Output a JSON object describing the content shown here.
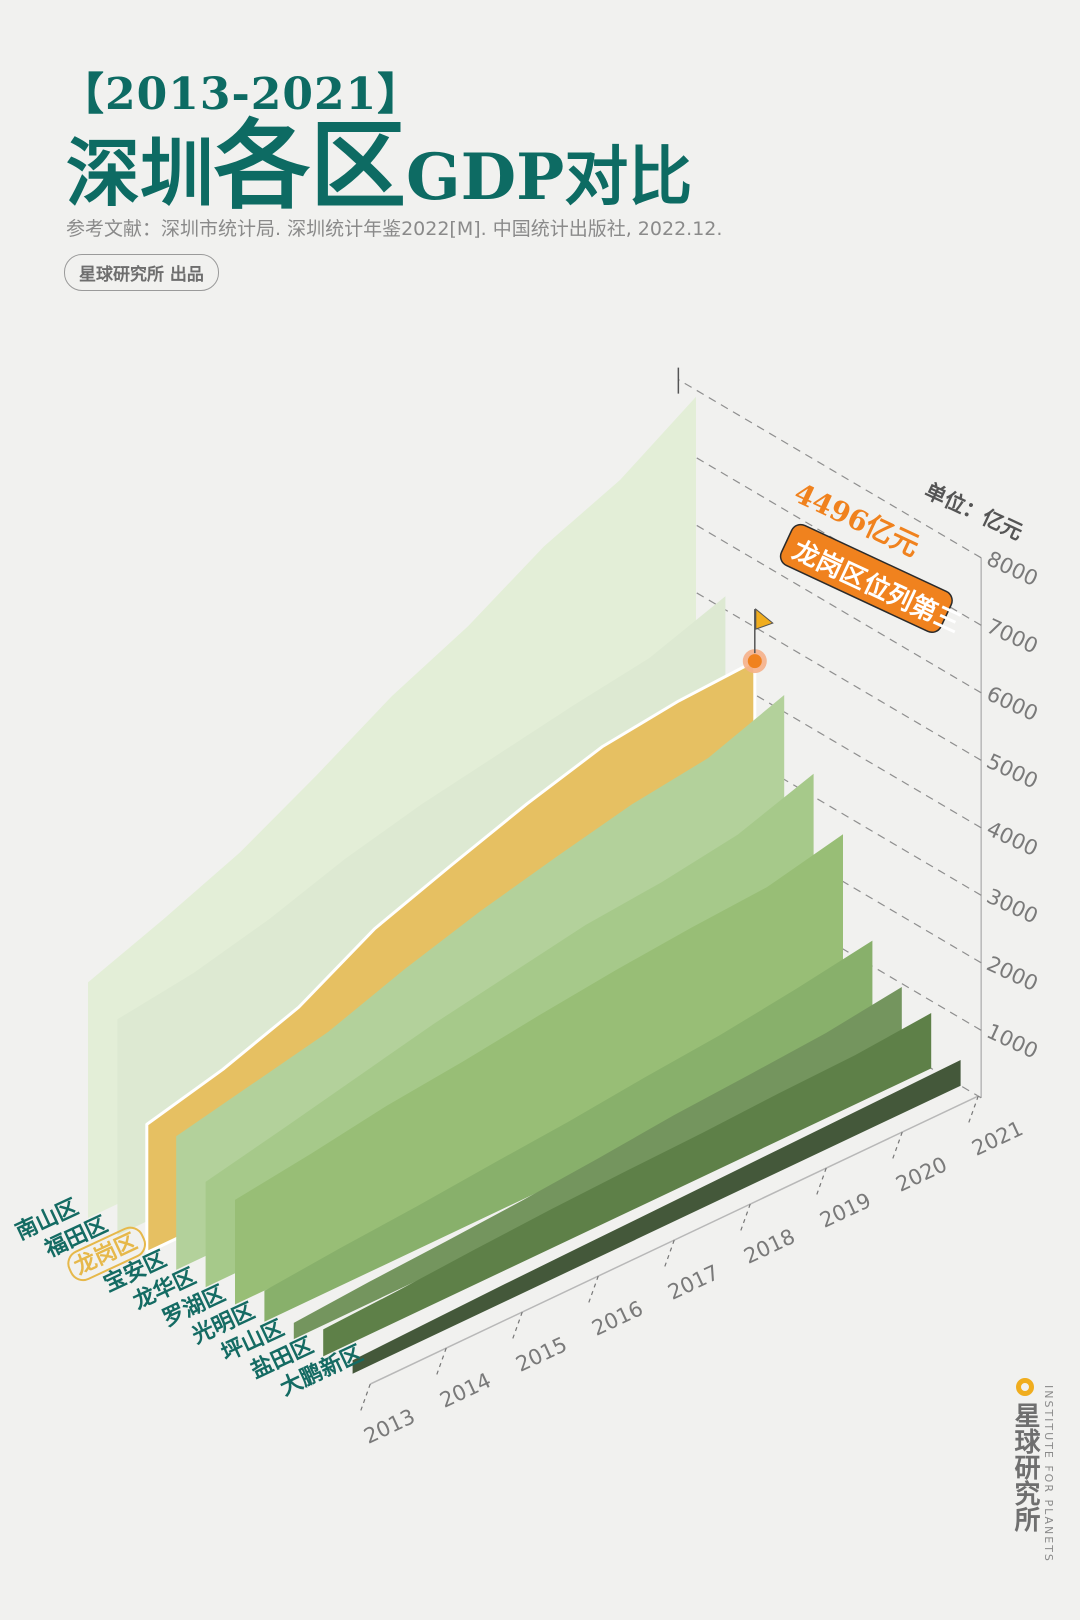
{
  "header": {
    "years": "【2013-2021】",
    "title_part1": "深圳",
    "title_part2": "各区",
    "title_part3": "GDP对比",
    "source": "参考文献：深圳市统计局. 深圳统计年鉴2022[M]. 中国统计出版社, 2022.12.",
    "publisher": "星球研究所 出品"
  },
  "brand": {
    "name_cn": "星球研究所",
    "name_en": "INSTITUTE FOR PLANETS"
  },
  "colors": {
    "title": "#0d6b63",
    "highlight": "#e6c062",
    "annotation": "#f0821e",
    "district_label": "#146b63"
  },
  "chart_data": {
    "type": "area",
    "style": "3d-stacked-ridge",
    "unit_label": "单位：亿元",
    "x": [
      "2013",
      "2014",
      "2015",
      "2016",
      "2017",
      "2018",
      "2019",
      "2020",
      "2021"
    ],
    "ylim": [
      0,
      8000
    ],
    "yticks": [
      "1000",
      "2000",
      "3000",
      "4000",
      "5000",
      "6000",
      "7000",
      "8000"
    ],
    "grid": true,
    "highlight_series": "龙岗区",
    "annotation": {
      "series": "龙岗区",
      "x": "2021",
      "value_text": "4496亿元",
      "note_text": "龙岗区位列第三"
    },
    "series": [
      {
        "name": "南山区",
        "color": "#e3eed7",
        "values": [
          3490,
          3900,
          4350,
          4950,
          5600,
          6100,
          6750,
          7200,
          7900
        ]
      },
      {
        "name": "福田区",
        "color": "#dde9d2",
        "values": [
          3200,
          3350,
          3620,
          3980,
          4250,
          4450,
          4650,
          4820,
          5200
        ]
      },
      {
        "name": "龙岗区",
        "color": "#e6c062",
        "values": [
          1900,
          2180,
          2570,
          3200,
          3600,
          3980,
          4300,
          4440,
          4496
        ]
      },
      {
        "name": "宝安区",
        "color": "#b3d19b",
        "values": [
          1980,
          2220,
          2460,
          2850,
          3180,
          3450,
          3700,
          3850,
          4250
        ]
      },
      {
        "name": "龙华区",
        "color": "#a6c98a",
        "values": [
          1560,
          1800,
          2050,
          2300,
          2500,
          2700,
          2800,
          2970,
          3340
        ]
      },
      {
        "name": "罗湖区",
        "color": "#98be76",
        "values": [
          1550,
          1700,
          1880,
          2000,
          2150,
          2280,
          2380,
          2450,
          2700
        ]
      },
      {
        "name": "光明区",
        "color": "#88b06b",
        "values": [
          460,
          560,
          640,
          740,
          830,
          950,
          1050,
          1200,
          1380
        ]
      },
      {
        "name": "坪山区",
        "color": "#74955e",
        "values": [
          240,
          320,
          380,
          450,
          540,
          650,
          720,
          800,
          950
        ]
      },
      {
        "name": "盐田区",
        "color": "#5e8048",
        "values": [
          400,
          450,
          520,
          580,
          620,
          650,
          700,
          730,
          820
        ]
      },
      {
        "name": "大鹏新区",
        "color": "#44583a",
        "values": [
          200,
          230,
          260,
          280,
          300,
          320,
          340,
          360,
          380
        ]
      }
    ]
  }
}
